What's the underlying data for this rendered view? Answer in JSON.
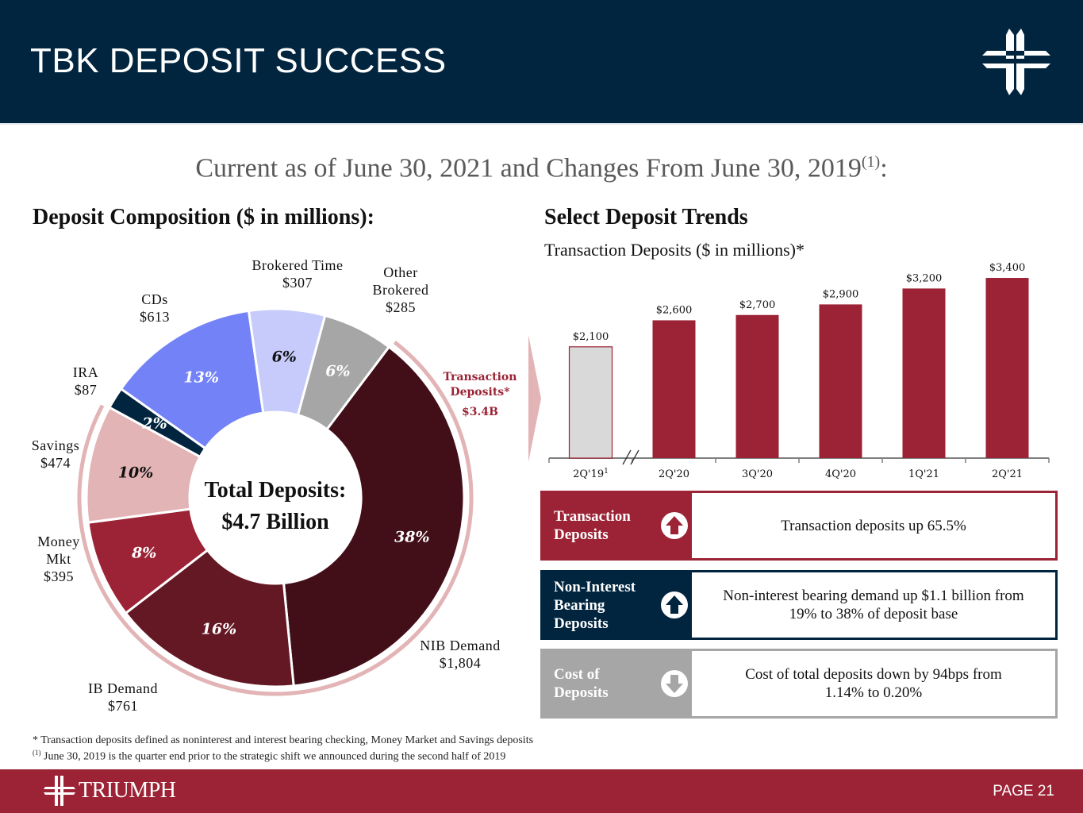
{
  "header": {
    "title": "TBK DEPOSIT SUCCESS",
    "logo_icon": "triumph-cross-icon"
  },
  "subtitle": {
    "text": "Current as of June 30, 2021 and Changes From June 30, 2019",
    "superscript": "(1)",
    "suffix": ":"
  },
  "left_section": {
    "title": "Deposit Composition ($ in millions):"
  },
  "right_section": {
    "title": "Select Deposit Trends",
    "chart_subtitle": "Transaction Deposits ($ in millions)*"
  },
  "colors": {
    "navy": "#01253f",
    "brand_red": "#9b2335",
    "gray": "#a6a6a6",
    "pink_ring": "#e3b4b6"
  },
  "chart_data": [
    {
      "type": "pie",
      "variant": "donut",
      "title": "Deposit Composition ($ in millions):",
      "center_label": [
        "Total Deposits:",
        "$4.7 Billion"
      ],
      "slices": [
        {
          "name": "NIB Demand",
          "value_label": "$1,804",
          "value": 1804,
          "percent": 38,
          "percent_label": "38%",
          "color": "#420f19",
          "pct_color": "#ffffff"
        },
        {
          "name": "IB Demand",
          "value_label": "$761",
          "value": 761,
          "percent": 16,
          "percent_label": "16%",
          "color": "#641824",
          "pct_color": "#ffffff"
        },
        {
          "name": "Money Mkt",
          "value_label": "$395",
          "value": 395,
          "percent": 8,
          "percent_label": "8%",
          "color": "#9b2335",
          "pct_color": "#ffffff"
        },
        {
          "name": "Savings",
          "value_label": "$474",
          "value": 474,
          "percent": 10,
          "percent_label": "10%",
          "color": "#e3b4b6",
          "pct_color": "#111111"
        },
        {
          "name": "IRA",
          "value_label": "$87",
          "value": 87,
          "percent": 2,
          "percent_label": "2%",
          "color": "#01253f",
          "pct_color": "#ffffff"
        },
        {
          "name": "CDs",
          "value_label": "$613",
          "value": 613,
          "percent": 13,
          "percent_label": "13%",
          "color": "#7383f7",
          "pct_color": "#ffffff"
        },
        {
          "name": "Brokered Time",
          "value_label": "$307",
          "value": 307,
          "percent": 6,
          "percent_label": "6%",
          "color": "#c6cbfb",
          "pct_color": "#111111"
        },
        {
          "name": "Other Brokered",
          "value_label": "$285",
          "value": 285,
          "percent": 6,
          "percent_label": "6%",
          "color": "#a6a6a6",
          "pct_color": "#ffffff"
        }
      ],
      "outer_group": {
        "label": [
          "Transaction",
          "Deposits*"
        ],
        "value_label": "$3.4B",
        "members": [
          "NIB Demand",
          "IB Demand",
          "Money Mkt",
          "Savings"
        ]
      },
      "labels": {
        "nib": [
          "NIB Demand",
          "$1,804"
        ],
        "ib": [
          "IB Demand",
          "$761"
        ],
        "mm": [
          "Money",
          "Mkt",
          "$395"
        ],
        "sav": [
          "Savings",
          "$474"
        ],
        "ira": [
          "IRA",
          "$87"
        ],
        "cds": [
          "CDs",
          "$613"
        ],
        "bt": [
          "Brokered Time",
          "$307"
        ],
        "ob": [
          "Other",
          "Brokered",
          "$285"
        ]
      }
    },
    {
      "type": "bar",
      "title": "Transaction Deposits ($ in millions)*",
      "categories": [
        "2Q'19",
        "2Q'20",
        "3Q'20",
        "4Q'20",
        "1Q'21",
        "2Q'21"
      ],
      "category_superscripts": [
        "1",
        "",
        "",
        "",
        "",
        ""
      ],
      "values": [
        2100,
        2600,
        2700,
        2900,
        3200,
        3400
      ],
      "value_labels": [
        "$2,100",
        "$2,600",
        "$2,700",
        "$2,900",
        "$3,200",
        "$3,400"
      ],
      "bar_colors": [
        "#d9d9d9",
        "#9b2335",
        "#9b2335",
        "#9b2335",
        "#9b2335",
        "#9b2335"
      ],
      "axis_break_after": "2Q'19",
      "xlabel": "",
      "ylabel": "",
      "ylim": [
        0,
        3700
      ],
      "grid": false
    }
  ],
  "cards": [
    {
      "title": "Transaction Deposits",
      "title_lines": [
        "Transaction",
        "Deposits"
      ],
      "icon": "arrow-up-circle-icon",
      "direction": "up",
      "color": "#9b2335",
      "text_lines": [
        "Transaction deposits up 65.5%"
      ]
    },
    {
      "title": "Non-Interest Bearing Deposits",
      "title_lines": [
        "Non-Interest",
        "Bearing",
        "Deposits"
      ],
      "icon": "arrow-up-circle-icon",
      "direction": "up",
      "color": "#01253f",
      "text_lines": [
        "Non-interest bearing demand up $1.1 billion from",
        "19% to 38% of deposit base"
      ]
    },
    {
      "title": "Cost of Deposits",
      "title_lines": [
        "Cost of",
        "Deposits"
      ],
      "icon": "arrow-down-circle-icon",
      "direction": "down",
      "color": "#a6a6a6",
      "text_lines": [
        "Cost of total deposits down by 94bps from",
        "1.14% to 0.20%"
      ]
    }
  ],
  "footnotes": {
    "asterisk": "* Transaction deposits defined as noninterest and interest bearing checking, Money Market  and Savings deposits",
    "one_marker": "(1)",
    "one_text": " June 30, 2019 is the quarter end prior to the strategic shift we announced during the second half of 2019"
  },
  "footer": {
    "logo_text": "TRIUMPH",
    "page": "PAGE 21"
  }
}
